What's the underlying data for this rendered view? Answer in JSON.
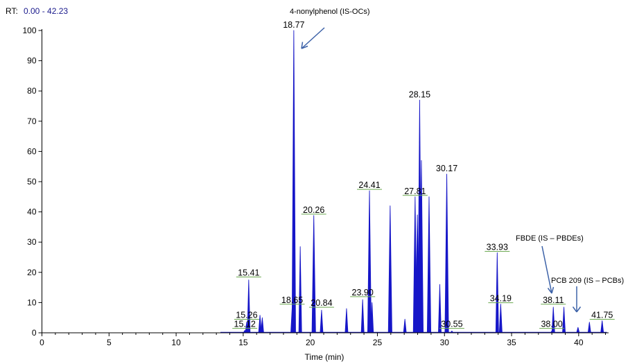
{
  "rt_range": {
    "prefix": "RT:",
    "value": "0.00 - 42.23"
  },
  "chart_data": {
    "type": "line",
    "xlabel": "Time (min)",
    "ylabel": "",
    "xlim": [
      0,
      42.23
    ],
    "ylim": [
      0,
      100
    ],
    "x_ticks": [
      "0",
      "5",
      "10",
      "15",
      "20",
      "25",
      "30",
      "35",
      "40"
    ],
    "y_ticks": [
      "0",
      "10",
      "20",
      "30",
      "40",
      "50",
      "60",
      "70",
      "80",
      "90",
      "100"
    ],
    "grid": false,
    "series_color": "#1616c8",
    "peaks": [
      {
        "rt": 15.12,
        "height": 0.8
      },
      {
        "rt": 15.26,
        "height": 3.5
      },
      {
        "rt": 15.41,
        "height": 17.5
      },
      {
        "rt": 16.25,
        "height": 5.8
      },
      {
        "rt": 16.42,
        "height": 5.0
      },
      {
        "rt": 18.65,
        "height": 8.5
      },
      {
        "rt": 18.77,
        "height": 100
      },
      {
        "rt": 19.25,
        "height": 28.5
      },
      {
        "rt": 20.26,
        "height": 38.8
      },
      {
        "rt": 20.84,
        "height": 7.5
      },
      {
        "rt": 22.7,
        "height": 8.0
      },
      {
        "rt": 23.9,
        "height": 11.0
      },
      {
        "rt": 24.41,
        "height": 47.0
      },
      {
        "rt": 24.6,
        "height": 10.0
      },
      {
        "rt": 25.95,
        "height": 42.0
      },
      {
        "rt": 27.05,
        "height": 4.5
      },
      {
        "rt": 27.81,
        "height": 45.0
      },
      {
        "rt": 27.98,
        "height": 39.0
      },
      {
        "rt": 28.15,
        "height": 77.0
      },
      {
        "rt": 28.28,
        "height": 57.0
      },
      {
        "rt": 28.85,
        "height": 45.0
      },
      {
        "rt": 29.65,
        "height": 16.0
      },
      {
        "rt": 30.17,
        "height": 52.5
      },
      {
        "rt": 30.55,
        "height": 0.6
      },
      {
        "rt": 33.93,
        "height": 26.5
      },
      {
        "rt": 34.19,
        "height": 9.5
      },
      {
        "rt": 38.0,
        "height": 0.6
      },
      {
        "rt": 38.11,
        "height": 8.5
      },
      {
        "rt": 38.9,
        "height": 8.5
      },
      {
        "rt": 39.95,
        "height": 1.8
      },
      {
        "rt": 40.8,
        "height": 3.5
      },
      {
        "rt": 41.75,
        "height": 4.0
      }
    ],
    "peak_labels": [
      {
        "text": "18.77",
        "rt": 18.77,
        "level": 100
      },
      {
        "text": "28.15",
        "rt": 28.15,
        "level": 77
      },
      {
        "text": "30.17",
        "rt": 30.17,
        "level": 52.5
      },
      {
        "text": "24.41",
        "rt": 24.41,
        "level": 47
      },
      {
        "text": "27.81",
        "rt": 27.81,
        "level": 45
      },
      {
        "text": "20.26",
        "rt": 20.26,
        "level": 38.8
      },
      {
        "text": "33.93",
        "rt": 33.93,
        "level": 26.5
      },
      {
        "text": "15.41",
        "rt": 15.41,
        "level": 18
      },
      {
        "text": "23.90",
        "rt": 23.9,
        "level": 11.5
      },
      {
        "text": "18.65",
        "rt": 18.65,
        "level": 9
      },
      {
        "text": "38.11",
        "rt": 38.11,
        "level": 9
      },
      {
        "text": "34.19",
        "rt": 34.19,
        "level": 9.5
      },
      {
        "text": "20.84",
        "rt": 20.84,
        "level": 8
      },
      {
        "text": "15.26",
        "rt": 15.26,
        "level": 4
      },
      {
        "text": "41.75",
        "rt": 41.75,
        "level": 4
      },
      {
        "text": "15.12",
        "rt": 15.12,
        "level": 1
      },
      {
        "text": "30.55",
        "rt": 30.55,
        "level": 1
      },
      {
        "text": "38.00",
        "rt": 38.0,
        "level": 1
      }
    ],
    "annotations": [
      {
        "text": "4-nonylphenol (IS-OCs)"
      },
      {
        "text": "FBDE (IS – PBDEs)"
      },
      {
        "text": "PCB 209 (IS – PCBs)"
      }
    ]
  }
}
